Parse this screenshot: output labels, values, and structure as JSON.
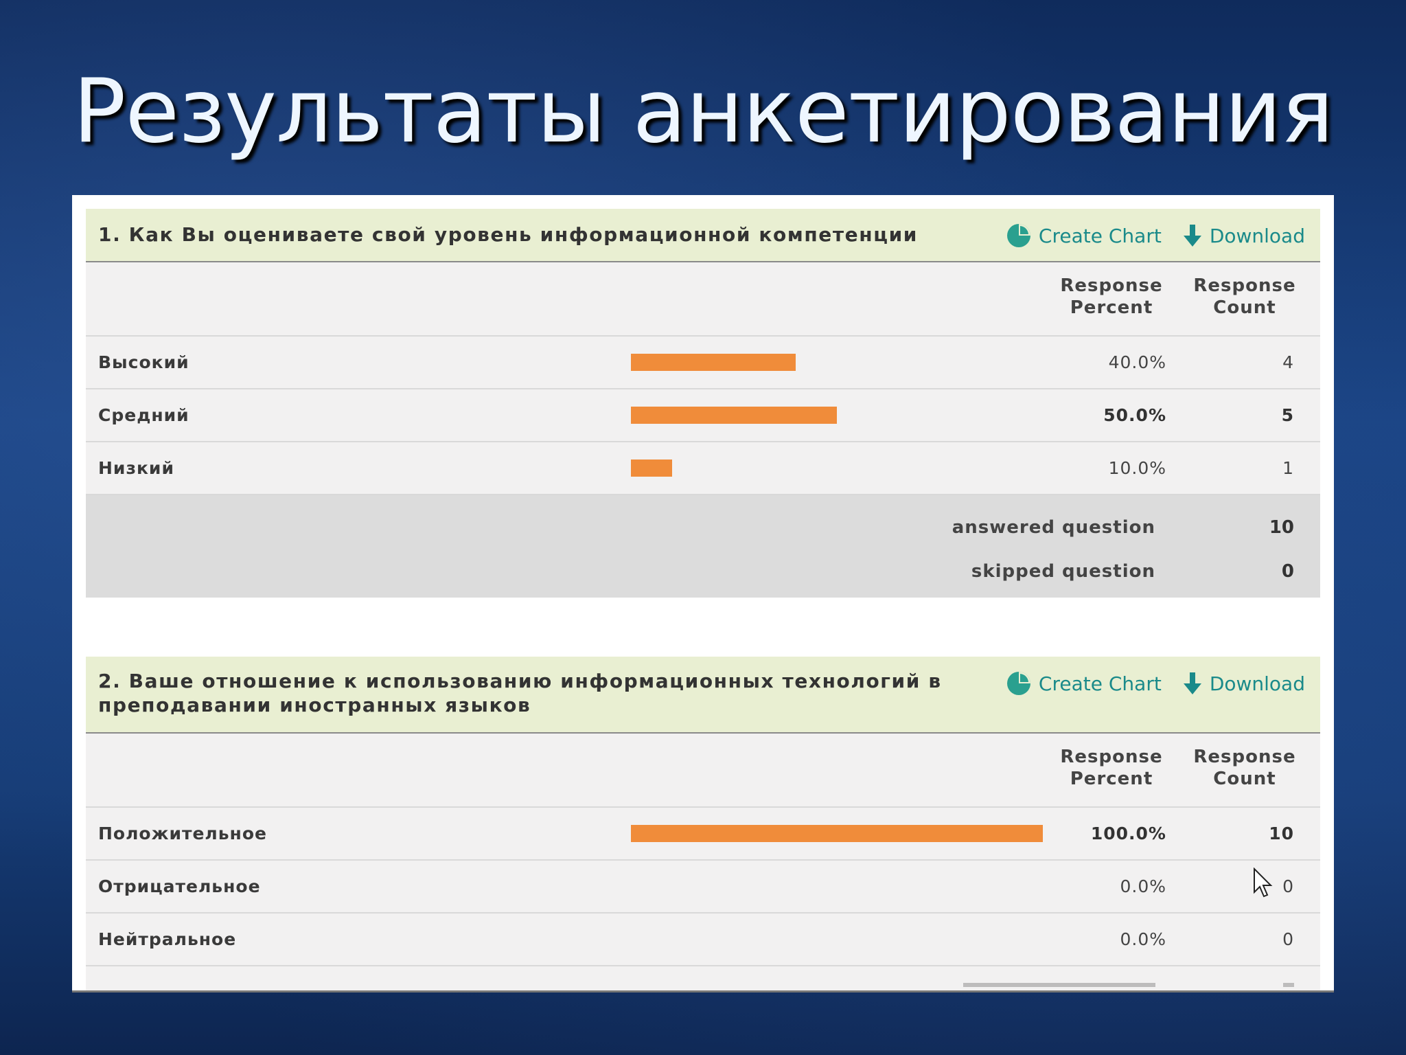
{
  "slide": {
    "title": "Результаты анкетирования"
  },
  "tools": {
    "create_chart": "Create Chart",
    "download": "Download"
  },
  "columns": {
    "percent_line1": "Response",
    "percent_line2": "Percent",
    "count_line1": "Response",
    "count_line2": "Count"
  },
  "colors": {
    "bar": "#f08c3a",
    "header_bg": "#e9efd2",
    "link": "#1a8a8a"
  },
  "q1": {
    "title": "1. Как Вы оцениваете свой уровень информационной компетенции",
    "rows": [
      {
        "label": "Высокий",
        "percent": "40.0%",
        "count": "4",
        "fraction": 0.4
      },
      {
        "label": "Средний",
        "percent": "50.0%",
        "count": "5",
        "fraction": 0.5
      },
      {
        "label": "Низкий",
        "percent": "10.0%",
        "count": "1",
        "fraction": 0.1
      }
    ],
    "answered_label": "answered question",
    "answered_value": "10",
    "skipped_label": "skipped question",
    "skipped_value": "0"
  },
  "q2": {
    "title_line1": "2. Ваше отношение к использованию информационных технологий в",
    "title_line2": "преподавании иностранных языков",
    "rows": [
      {
        "label": "Положительное",
        "percent": "100.0%",
        "count": "10",
        "fraction": 1.0
      },
      {
        "label": "Отрицательное",
        "percent": "0.0%",
        "count": "0",
        "fraction": 0.0
      },
      {
        "label": "Нейтральное",
        "percent": "0.0%",
        "count": "0",
        "fraction": 0.0
      }
    ]
  }
}
